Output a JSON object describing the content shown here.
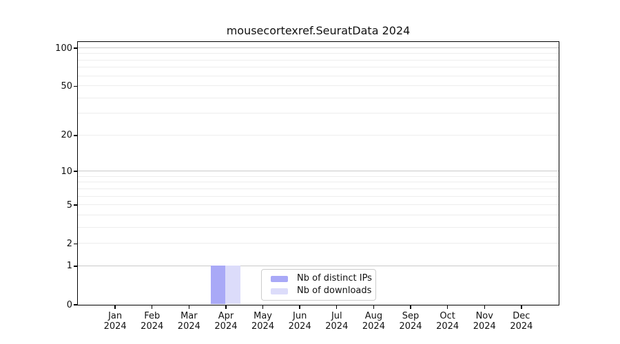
{
  "chart_data": {
    "type": "bar",
    "title": "mousecortexref.SeuratData 2024",
    "categories": [
      {
        "month": "Jan",
        "year": "2024"
      },
      {
        "month": "Feb",
        "year": "2024"
      },
      {
        "month": "Mar",
        "year": "2024"
      },
      {
        "month": "Apr",
        "year": "2024"
      },
      {
        "month": "May",
        "year": "2024"
      },
      {
        "month": "Jun",
        "year": "2024"
      },
      {
        "month": "Jul",
        "year": "2024"
      },
      {
        "month": "Aug",
        "year": "2024"
      },
      {
        "month": "Sep",
        "year": "2024"
      },
      {
        "month": "Oct",
        "year": "2024"
      },
      {
        "month": "Nov",
        "year": "2024"
      },
      {
        "month": "Dec",
        "year": "2024"
      }
    ],
    "series": [
      {
        "name": "Nb of distinct IPs",
        "color": "#a9a9f7",
        "values": [
          0,
          0,
          0,
          1,
          0,
          0,
          0,
          0,
          0,
          0,
          0,
          0
        ]
      },
      {
        "name": "Nb of downloads",
        "color": "#dcdcfa",
        "values": [
          0,
          0,
          0,
          1,
          0,
          0,
          0,
          0,
          0,
          0,
          0,
          0
        ]
      }
    ],
    "yscale": "log1p",
    "ylim": [
      0,
      112
    ],
    "yticks": [
      0,
      1,
      2,
      5,
      10,
      20,
      50,
      100
    ],
    "major_grid_values": [
      1,
      10,
      100
    ],
    "minor_grid_values": [
      2,
      3,
      4,
      5,
      6,
      7,
      8,
      9,
      20,
      30,
      40,
      50,
      60,
      70,
      80,
      90
    ],
    "grid": "horizontal",
    "legend_position": "lower center",
    "xlabel": "",
    "ylabel": ""
  },
  "legend": {
    "items": [
      {
        "label": "Nb of distinct IPs",
        "color": "#a9a9f7"
      },
      {
        "label": "Nb of downloads",
        "color": "#dcdcfa"
      }
    ]
  },
  "colors": {
    "background": "#ffffff",
    "spine": "#000000",
    "grid_major": "#c9c9c9",
    "grid_minor": "#ededed",
    "text": "#111111",
    "bar_distinct_ips": "#a9a9f7",
    "bar_downloads": "#dcdcfa"
  }
}
